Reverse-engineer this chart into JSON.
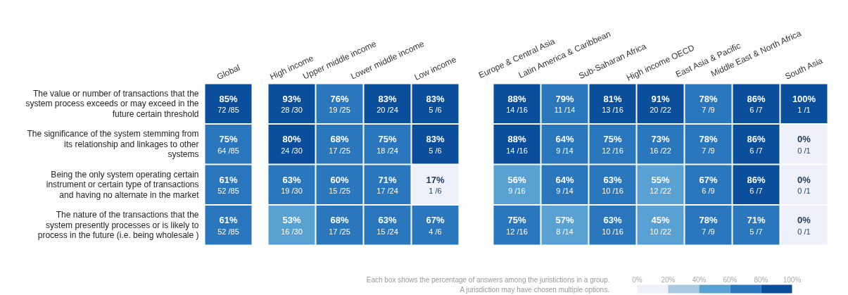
{
  "chart_data": [
    {
      "type": "heatmap",
      "categories": [
        "Global"
      ],
      "y_categories": [
        "The value or number of transactions that the system process exceeds or may exceed in the future certain threshold",
        "The significance of the system stemming from its relationship and linkages to other systems",
        "Being the only system operating certain instrument or certain type of transactions and having no alternate in the market",
        "The nature of the transactions that the system presently processes or is likely to process in the future (i.e. being wholesale )"
      ],
      "cells": [
        [
          85
        ],
        [
          75
        ],
        [
          61
        ],
        [
          61
        ]
      ],
      "cell_labels": [
        [
          "85%"
        ],
        [
          "75%"
        ],
        [
          "61%"
        ],
        [
          "61%"
        ]
      ],
      "annotations": [
        "72 /85",
        "64 /85",
        "52 /85",
        "52 /85"
      ]
    },
    {
      "type": "heatmap",
      "categories": [
        "High income",
        "Upper middle income",
        "Lower middle income",
        "Low income"
      ],
      "y_categories": [
        "The value or number of transactions that the system process exceeds or may exceed in the future certain threshold",
        "The significance of the system stemming from its relationship and linkages to other systems",
        "Being the only system operating certain instrument or certain type of transactions and having no alternate in the market",
        "The nature of the transactions that the system presently processes or is likely to process in the future (i.e. being wholesale )"
      ],
      "tick_labels": "x",
      "cells": [
        [
          93,
          76,
          83,
          83
        ],
        [
          80,
          68,
          75,
          83
        ],
        [
          63,
          60,
          71,
          17
        ],
        [
          53,
          68,
          63,
          67
        ]
      ],
      "cell_labels": [
        [
          "93%",
          "76%",
          "83%",
          "83%"
        ],
        [
          "80%",
          "68%",
          "75%",
          "83%"
        ],
        [
          "63%",
          "60%",
          "71%",
          "17%"
        ],
        [
          "53%",
          "68%",
          "63%",
          "67%"
        ]
      ],
      "annotations": [
        "28 /30",
        "19 /25",
        "20 /24",
        "5 /6",
        "24 /30",
        "17 /25",
        "18 /24",
        "5 /6",
        "19 /30",
        "15 /25",
        "17 /24",
        "1 /6",
        "16 /30",
        "17 /25",
        "15 /24",
        "4 /6"
      ]
    },
    {
      "type": "heatmap",
      "categories": [
        "Europe & Central Asia",
        "Latin America & Caribbean",
        "Sub-Saharan Africa",
        "High income OECD",
        "East Asia & Pacific",
        "Middle East & North Africa",
        "South Asia"
      ],
      "y_categories": [
        "The value or number of transactions that the system process exceeds or may exceed in the future certain threshold",
        "The significance of the system stemming from its relationship and linkages to other systems",
        "Being the only system operating certain instrument or certain type of transactions and having no alternate in the market",
        "The nature of the transactions that the system presently processes or is likely to process in the future (i.e. being wholesale )"
      ],
      "tick_labels": "x",
      "cells": [
        [
          88,
          79,
          81,
          91,
          78,
          86,
          100
        ],
        [
          88,
          64,
          75,
          73,
          78,
          86,
          0
        ],
        [
          56,
          64,
          63,
          55,
          67,
          86,
          0
        ],
        [
          75,
          57,
          63,
          45,
          78,
          71,
          0
        ]
      ],
      "cell_labels": [
        [
          "88%",
          "79%",
          "81%",
          "91%",
          "78%",
          "86%",
          "100%"
        ],
        [
          "88%",
          "64%",
          "75%",
          "73%",
          "78%",
          "86%",
          "0%"
        ],
        [
          "56%",
          "64%",
          "63%",
          "55%",
          "67%",
          "86%",
          "0%"
        ],
        [
          "75%",
          "57%",
          "63%",
          "45%",
          "78%",
          "71%",
          "0%"
        ]
      ],
      "clim": [
        0,
        100
      ],
      "cticks": [
        {
          "value": 0,
          "label": "0%"
        },
        {
          "value": 20,
          "label": "20%"
        },
        {
          "value": 40,
          "label": "40%"
        },
        {
          "value": 60,
          "label": "60%"
        },
        {
          "value": 80,
          "label": "80%"
        },
        {
          "value": 100,
          "label": "100%"
        }
      ],
      "annotations": [
        "Each box shows the percentage of answers among the juristictions in a group.",
        "A jurisdiction may have chosen multiple options.",
        "14 /16",
        "11 /14",
        "13 /16",
        "20 /22",
        "7 /9",
        "6 /7",
        "1 /1",
        "14 /16",
        "9 /14",
        "12 /16",
        "16 /22",
        "7 /9",
        "6 /7",
        "0 /1",
        "9 /16",
        "9 /14",
        "10 /16",
        "12 /22",
        "6 /9",
        "6 /7",
        "0 /1",
        "12 /16",
        "8 /14",
        "10 /16",
        "10 /22",
        "7 /9",
        "5 /7",
        "0 /1"
      ]
    }
  ]
}
